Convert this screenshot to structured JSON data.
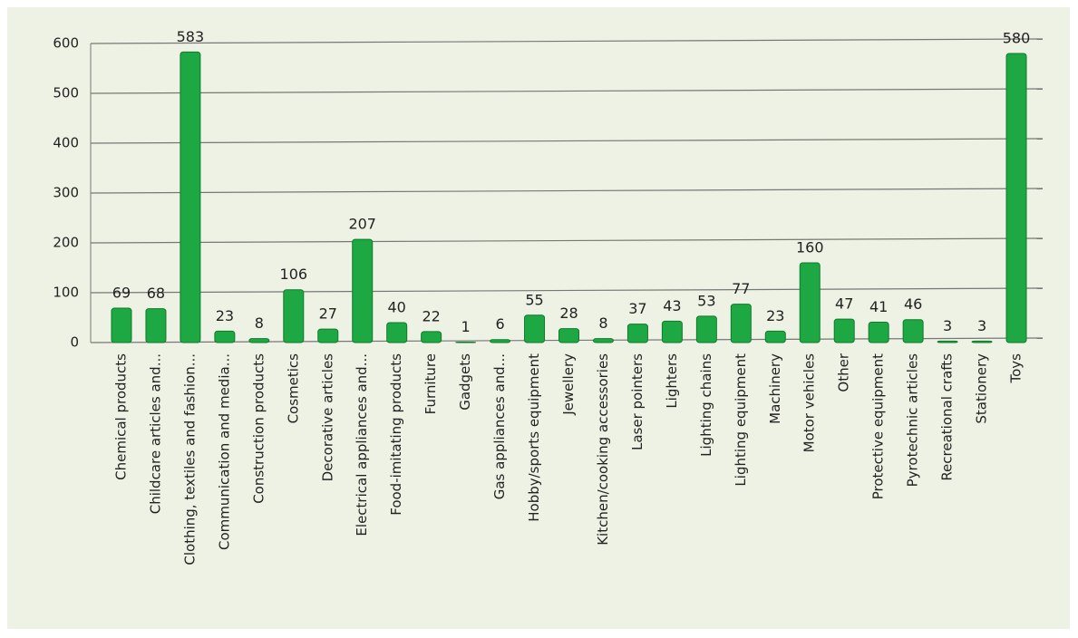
{
  "chart_data": {
    "type": "bar",
    "categories": [
      "Chemical products",
      "Childcare articles and...",
      "Clothing, textiles and fashion...",
      "Communication and media...",
      "Construction products",
      "Cosmetics",
      "Decorative articles",
      "Electrical appliances and...",
      "Food-imitating products",
      "Furniture",
      "Gadgets",
      "Gas appliances and...",
      "Hobby/sports equipment",
      "Jewellery",
      "Kitchen/cooking accessories",
      "Laser pointers",
      "Lighters",
      "Lighting chains",
      "Lighting equipment",
      "Machinery",
      "Motor vehicles",
      "Other",
      "Protective equipment",
      "Pyrotechnic articles",
      "Recreational crafts",
      "Stationery",
      "Toys"
    ],
    "values": [
      69,
      68,
      583,
      23,
      8,
      106,
      27,
      207,
      40,
      22,
      1,
      6,
      55,
      28,
      8,
      37,
      43,
      53,
      77,
      23,
      160,
      47,
      41,
      46,
      3,
      3,
      580
    ],
    "color": "#1ea843",
    "ylim": [
      0,
      600
    ],
    "yticks": [
      0,
      100,
      200,
      300,
      400,
      500,
      600
    ],
    "grid": true
  }
}
